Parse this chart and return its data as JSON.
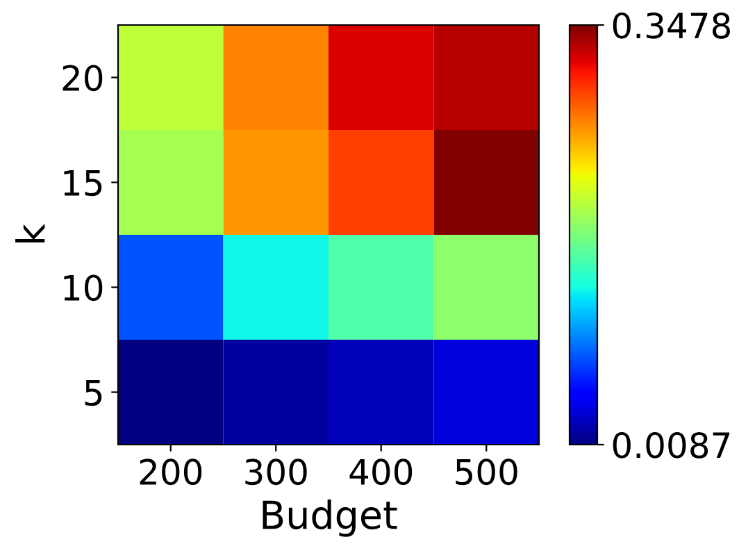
{
  "chart_data": {
    "type": "heatmap",
    "xlabel": "Budget",
    "ylabel": "k",
    "categories": [
      "200",
      "300",
      "400",
      "500"
    ],
    "y_categories": [
      "20",
      "15",
      "10",
      "5"
    ],
    "cells": [
      [
        0.205,
        0.27,
        0.321,
        0.331
      ],
      [
        0.195,
        0.263,
        0.294,
        0.3478
      ],
      [
        0.079,
        0.134,
        0.161,
        0.185
      ],
      [
        0.0087,
        0.019,
        0.026,
        0.036
      ]
    ],
    "clim": [
      0.0087,
      0.3478
    ],
    "cticks": [
      0.0087,
      0.3478
    ]
  }
}
